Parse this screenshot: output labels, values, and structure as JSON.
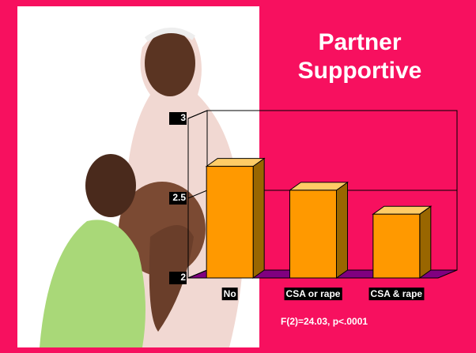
{
  "chart_data": {
    "type": "bar",
    "title": "Partner Supportive",
    "categories": [
      "No",
      "CSA or rape",
      "CSA & rape"
    ],
    "values": [
      2.7,
      2.55,
      2.4
    ],
    "color": "#ff9900",
    "ylim": [
      2,
      3
    ],
    "yticks": [
      2,
      2.5,
      3
    ],
    "grid": true,
    "annotation": "F(2)=24.03, p<.0001"
  }
}
